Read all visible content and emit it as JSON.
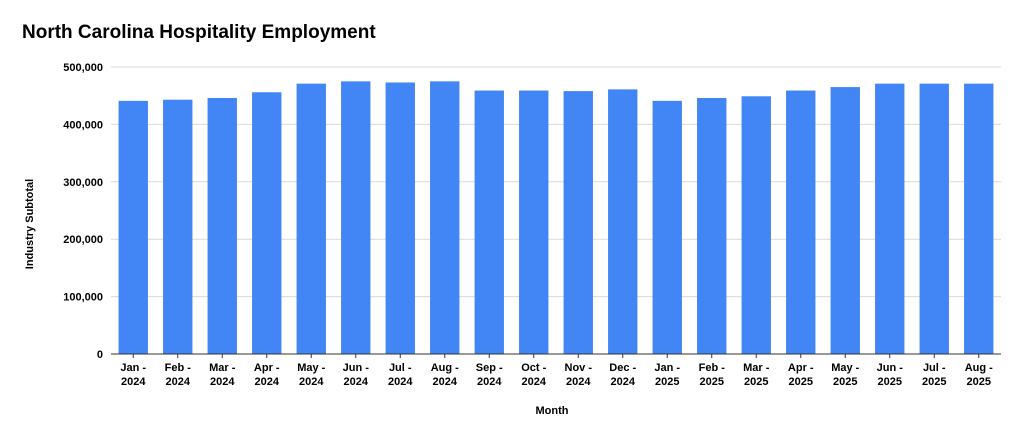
{
  "chart_data": {
    "type": "bar",
    "title": "North Carolina Hospitality Employment",
    "xlabel": "Month",
    "ylabel": "Industry Subtotal",
    "ylim": [
      0,
      500000
    ],
    "yticks": [
      0,
      100000,
      200000,
      300000,
      400000,
      500000
    ],
    "ytick_labels": [
      "0",
      "100,000",
      "200,000",
      "300,000",
      "400,000",
      "500,000"
    ],
    "grid": true,
    "legend": "none",
    "bar_color": "#4285f4",
    "categories": [
      {
        "line1": "Jan -",
        "line2": "2024"
      },
      {
        "line1": "Feb -",
        "line2": "2024"
      },
      {
        "line1": "Mar -",
        "line2": "2024"
      },
      {
        "line1": "Apr -",
        "line2": "2024"
      },
      {
        "line1": "May -",
        "line2": "2024"
      },
      {
        "line1": "Jun -",
        "line2": "2024"
      },
      {
        "line1": "Jul -",
        "line2": "2024"
      },
      {
        "line1": "Aug -",
        "line2": "2024"
      },
      {
        "line1": "Sep -",
        "line2": "2024"
      },
      {
        "line1": "Oct -",
        "line2": "2024"
      },
      {
        "line1": "Nov -",
        "line2": "2024"
      },
      {
        "line1": "Dec -",
        "line2": "2024"
      },
      {
        "line1": "Jan -",
        "line2": "2025"
      },
      {
        "line1": "Feb -",
        "line2": "2025"
      },
      {
        "line1": "Mar -",
        "line2": "2025"
      },
      {
        "line1": "Apr -",
        "line2": "2025"
      },
      {
        "line1": "May -",
        "line2": "2025"
      },
      {
        "line1": "Jun -",
        "line2": "2025"
      },
      {
        "line1": "Jul -",
        "line2": "2025"
      },
      {
        "line1": "Aug -",
        "line2": "2025"
      }
    ],
    "values": [
      441000,
      443000,
      446000,
      456000,
      471000,
      475000,
      473000,
      475000,
      459000,
      459000,
      458000,
      461000,
      441000,
      446000,
      449000,
      459000,
      465000,
      471000,
      471000,
      471000
    ]
  }
}
